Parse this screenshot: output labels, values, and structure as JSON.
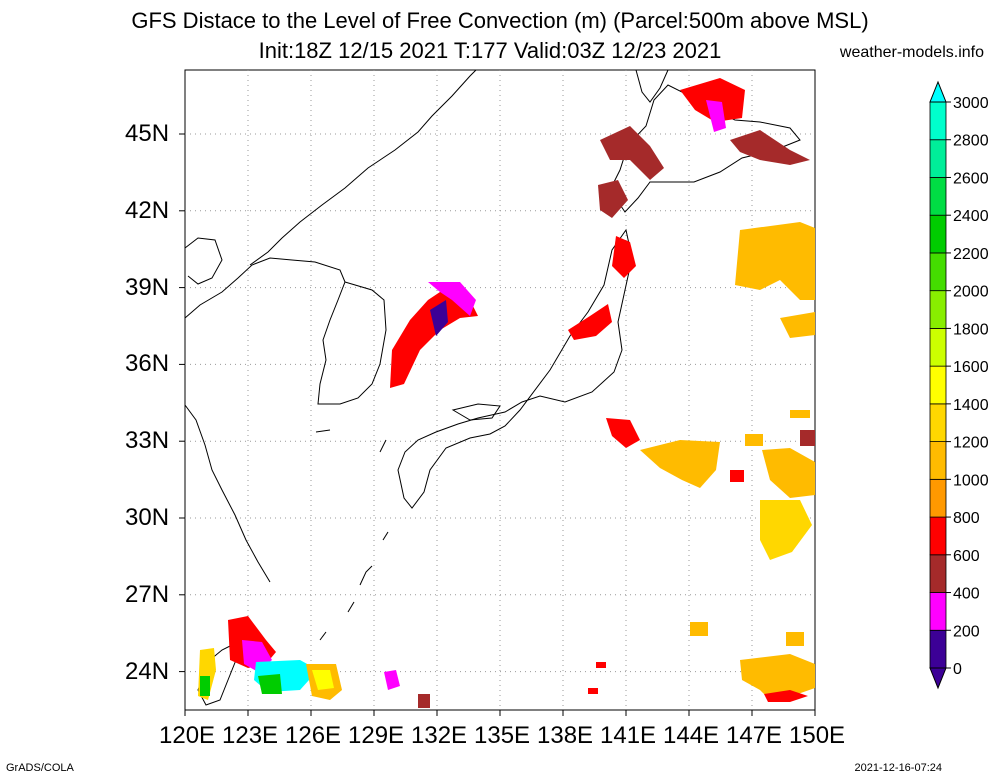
{
  "title": "GFS Distace to the Level of Free Convection (m) (Parcel:500m above MSL)",
  "subtitle": "Init:18Z 12/15 2021 T:177 Valid:03Z 12/23 2021",
  "site": "weather-models.info",
  "footer_left": "GrADS/COLA",
  "footer_right": "2021-12-16-07:24",
  "lon_labels": [
    "120E",
    "123E",
    "126E",
    "129E",
    "132E",
    "135E",
    "138E",
    "141E",
    "144E",
    "147E",
    "150E"
  ],
  "lat_labels": [
    "45N",
    "42N",
    "39N",
    "36N",
    "33N",
    "30N",
    "27N",
    "24N"
  ],
  "map": {
    "lon_min": 120,
    "lon_max": 150,
    "lat_min": 22.5,
    "lat_max": 47.5,
    "grid": true
  },
  "colorbar": {
    "levels": [
      "0",
      "200",
      "400",
      "600",
      "800",
      "1000",
      "1200",
      "1400",
      "1600",
      "1800",
      "2000",
      "2200",
      "2400",
      "2600",
      "2800",
      "3000"
    ],
    "colors": [
      "#3c0096",
      "#ff00ff",
      "#a52a2a",
      "#ff0000",
      "#ff9900",
      "#ffbb00",
      "#ffd700",
      "#ffff00",
      "#ccff00",
      "#88ee00",
      "#44dd00",
      "#00cc00",
      "#00dd44",
      "#00ee99",
      "#00ffcc",
      "#00ffff"
    ],
    "under_color": "#3c0096",
    "over_color": "#00ffff"
  }
}
